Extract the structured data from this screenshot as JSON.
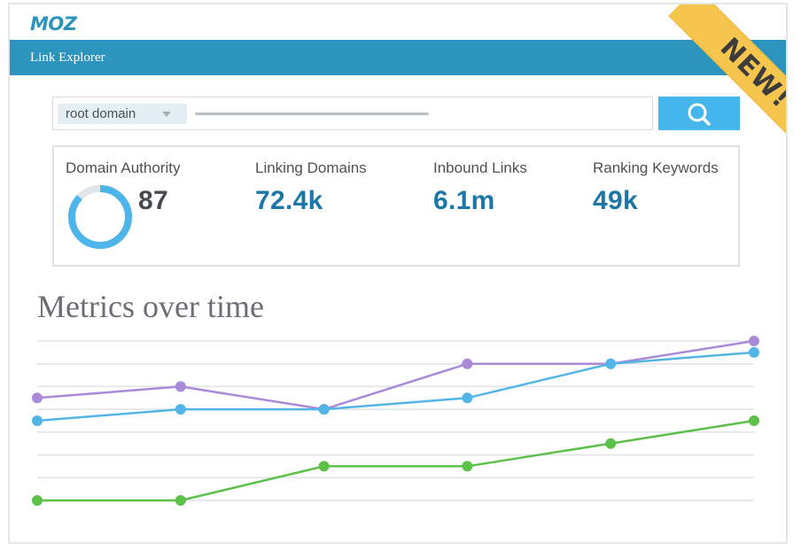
{
  "brand": {
    "logo_text": "MOZ",
    "logo_color": "#2d94bd"
  },
  "header": {
    "title": "Link Explorer",
    "bar_color": "#2d94bd"
  },
  "badge": {
    "text": "NEW!",
    "color": "#f6c54d"
  },
  "search": {
    "scope_selected": "root domain",
    "input_value": "",
    "button_icon": "search-icon",
    "button_color": "#44b6ec"
  },
  "metrics": {
    "domain_authority": {
      "label": "Domain Authority",
      "value": "87",
      "score": 87,
      "max": 100
    },
    "linking_domains": {
      "label": "Linking Domains",
      "value": "72.4k"
    },
    "inbound_links": {
      "label": "Inbound Links",
      "value": "6.1m"
    },
    "ranking_keywords": {
      "label": "Ranking Keywords",
      "value": "49k"
    },
    "value_color": "#1b77a6"
  },
  "chart_section": {
    "title": "Metrics over time"
  },
  "chart_data": {
    "type": "line",
    "title": "Metrics over time",
    "xlabel": "",
    "ylabel": "",
    "x": [
      1,
      2,
      3,
      4,
      5,
      6
    ],
    "ylim": [
      0,
      7
    ],
    "grid": true,
    "legend": "none",
    "series": [
      {
        "color": "#a98ad8",
        "values": [
          4.5,
          5.0,
          4.0,
          6.0,
          6.0,
          7.0
        ]
      },
      {
        "color": "#52b5e6",
        "values": [
          3.5,
          4.0,
          4.0,
          4.5,
          6.0,
          6.5
        ]
      },
      {
        "color": "#5cc04a",
        "values": [
          0.0,
          0.0,
          1.5,
          1.5,
          2.5,
          3.5
        ]
      }
    ]
  }
}
